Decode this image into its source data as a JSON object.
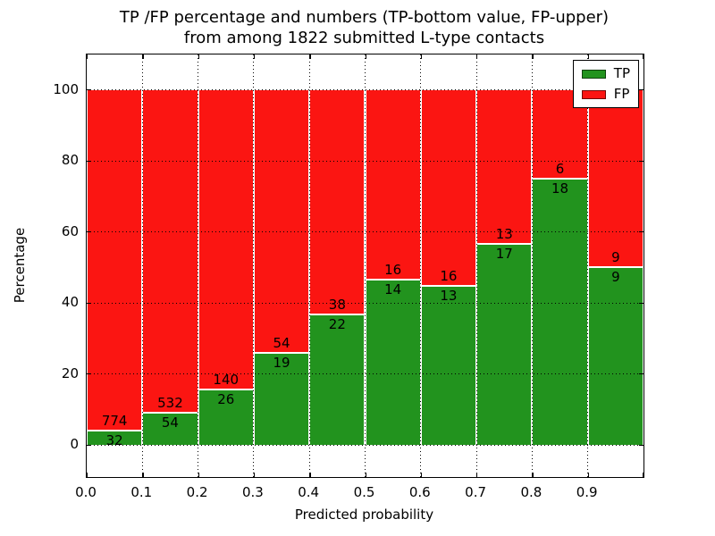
{
  "chart_data": {
    "type": "bar",
    "stacked": true,
    "title_lines": [
      "TP /FP percentage and numbers (TP-bottom value, FP-upper)",
      "from among 1822 submitted L-type contacts"
    ],
    "total_submitted_contacts": 1822,
    "xlabel": "Predicted probability",
    "ylabel": "Percentage",
    "categories": [
      "0.0",
      "0.1",
      "0.2",
      "0.3",
      "0.4",
      "0.5",
      "0.6",
      "0.7",
      "0.8",
      "0.9"
    ],
    "x_tick_labels": [
      "0.0",
      "0.1",
      "0.2",
      "0.3",
      "0.4",
      "0.5",
      "0.6",
      "0.7",
      "0.8",
      "0.9"
    ],
    "y_ticks": [
      0,
      20,
      40,
      60,
      80,
      100
    ],
    "xlim": [
      0.0,
      1.0
    ],
    "ylim": [
      -9,
      110
    ],
    "bin_width": 0.1,
    "grid_style": "dotted",
    "bar_edge_color": "#ffffff",
    "legend_position": "upper right",
    "series": [
      {
        "name": "TP",
        "color": "#22931e",
        "values": [
          32,
          54,
          26,
          19,
          22,
          14,
          13,
          17,
          18,
          9
        ]
      },
      {
        "name": "FP",
        "color": "#fb1512",
        "values": [
          774,
          532,
          140,
          54,
          38,
          16,
          16,
          13,
          6,
          9
        ]
      }
    ],
    "tp_percentages": [
      3.97,
      9.22,
      15.66,
      26.03,
      36.67,
      46.67,
      44.83,
      56.67,
      75.0,
      50.0
    ]
  }
}
